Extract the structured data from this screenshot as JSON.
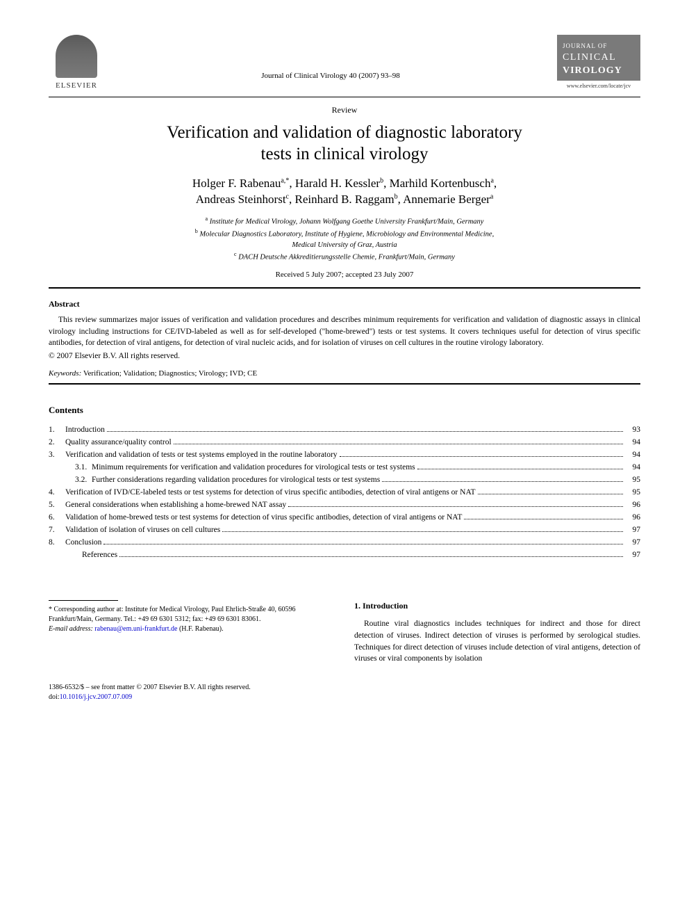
{
  "publisher": {
    "name": "ELSEVIER"
  },
  "journal_ref": "Journal of Clinical Virology 40 (2007) 93–98",
  "journal_badge": {
    "line1": "JOURNAL OF",
    "line2": "CLINICAL",
    "line3": "VIROLOGY",
    "url": "www.elsevier.com/locate/jcv"
  },
  "article_type": "Review",
  "title_line1": "Verification and validation of diagnostic laboratory",
  "title_line2": "tests in clinical virology",
  "authors": [
    {
      "name": "Holger F. Rabenau",
      "aff": "a,",
      "corr": "*"
    },
    {
      "name": "Harald H. Kessler",
      "aff": "b"
    },
    {
      "name": "Marhild Kortenbusch",
      "aff": "a"
    },
    {
      "name": "Andreas Steinhorst",
      "aff": "c"
    },
    {
      "name": "Reinhard B. Raggam",
      "aff": "b"
    },
    {
      "name": "Annemarie Berger",
      "aff": "a"
    }
  ],
  "affiliations": {
    "a": "Institute for Medical Virology, Johann Wolfgang Goethe University Frankfurt/Main, Germany",
    "b": "Molecular Diagnostics Laboratory, Institute of Hygiene, Microbiology and Environmental Medicine,",
    "b2": "Medical University of Graz, Austria",
    "c": "DACH Deutsche Akkreditierungsstelle Chemie, Frankfurt/Main, Germany"
  },
  "dates": "Received 5 July 2007; accepted 23 July 2007",
  "abstract": {
    "heading": "Abstract",
    "text": "This review summarizes major issues of verification and validation procedures and describes minimum requirements for verification and validation of diagnostic assays in clinical virology including instructions for CE/IVD-labeled as well as for self-developed (\"home-brewed\") tests or test systems. It covers techniques useful for detection of virus specific antibodies, for detection of viral antigens, for detection of viral nucleic acids, and for isolation of viruses on cell cultures in the routine virology laboratory.",
    "copyright": "© 2007 Elsevier B.V. All rights reserved."
  },
  "keywords": {
    "label": "Keywords:",
    "text": "Verification; Validation; Diagnostics; Virology; IVD; CE"
  },
  "contents": {
    "heading": "Contents",
    "items": [
      {
        "num": "1.",
        "sub": "",
        "title": "Introduction",
        "page": "93"
      },
      {
        "num": "2.",
        "sub": "",
        "title": "Quality assurance/quality control",
        "page": "94"
      },
      {
        "num": "3.",
        "sub": "",
        "title": "Verification and validation of tests or test systems employed in the routine laboratory",
        "page": "94"
      },
      {
        "num": "",
        "sub": "3.1.",
        "title": "Minimum requirements for verification and validation procedures for virological tests or test systems",
        "page": "94"
      },
      {
        "num": "",
        "sub": "3.2.",
        "title": "Further considerations regarding validation procedures for virological tests or test systems",
        "page": "95"
      },
      {
        "num": "4.",
        "sub": "",
        "title": "Verification of IVD/CE-labeled tests or test systems for detection of virus specific antibodies, detection of viral antigens or NAT",
        "page": "95"
      },
      {
        "num": "5.",
        "sub": "",
        "title": "General considerations when establishing a home-brewed NAT assay",
        "page": "96"
      },
      {
        "num": "6.",
        "sub": "",
        "title": "Validation of home-brewed tests or test systems for detection of virus specific antibodies, detection of viral antigens or NAT",
        "page": "96"
      },
      {
        "num": "7.",
        "sub": "",
        "title": "Validation of isolation of viruses on cell cultures",
        "page": "97"
      },
      {
        "num": "8.",
        "sub": "",
        "title": "Conclusion",
        "page": "97"
      },
      {
        "num": "",
        "sub": "",
        "title": "References",
        "page": "97"
      }
    ]
  },
  "footnote": {
    "corr": "* Corresponding author at: Institute for Medical Virology, Paul Ehrlich-Straße 40, 60596 Frankfurt/Main, Germany. Tel.: +49 69 6301 5312; fax: +49 69 6301 83061.",
    "email_label": "E-mail address:",
    "email": "rabenau@em.uni-frankfurt.de",
    "email_person": "(H.F. Rabenau)."
  },
  "section1": {
    "heading": "1. Introduction",
    "text": "Routine viral diagnostics includes techniques for indirect and those for direct detection of viruses. Indirect detection of viruses is performed by serological studies. Techniques for direct detection of viruses include detection of viral antigens, detection of viruses or viral components by isolation"
  },
  "footer": {
    "issn": "1386-6532/$ – see front matter © 2007 Elsevier B.V. All rights reserved.",
    "doi_label": "doi:",
    "doi": "10.1016/j.jcv.2007.07.009"
  }
}
